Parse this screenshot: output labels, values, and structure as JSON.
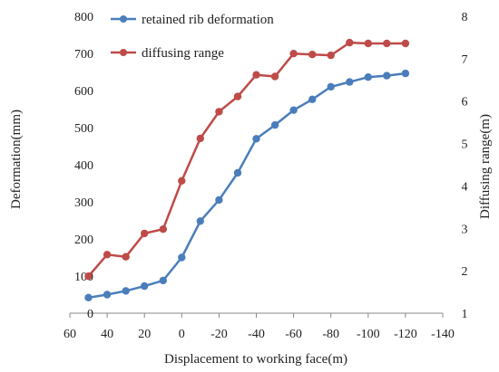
{
  "chart_data": {
    "type": "line",
    "xlabel": "Displacement to working face(m)",
    "ylabel_left": "Deformation(mm)",
    "ylabel_right": "Diffusing range(m)",
    "x_tick_labels": [
      "60",
      "40",
      "20",
      "0",
      "-20",
      "-40",
      "-60",
      "-80",
      "-100",
      "-120",
      "-140"
    ],
    "x_ticks": [
      60,
      40,
      20,
      0,
      -20,
      -40,
      -60,
      -80,
      -100,
      -120,
      -140
    ],
    "xlim": [
      60,
      -140
    ],
    "ylim_left": [
      0,
      800
    ],
    "ylim_right": [
      1,
      8
    ],
    "y_left_tick_labels": [
      "0",
      "100",
      "200",
      "300",
      "400",
      "500",
      "600",
      "700",
      "800"
    ],
    "y_left_ticks": [
      0,
      100,
      200,
      300,
      400,
      500,
      600,
      700,
      800
    ],
    "y_right_tick_labels": [
      "1",
      "2",
      "3",
      "4",
      "5",
      "6",
      "7",
      "8"
    ],
    "y_right_ticks": [
      1,
      2,
      3,
      4,
      5,
      6,
      7,
      8
    ],
    "grid": false,
    "legend_position": "top-center",
    "x": [
      50,
      40,
      30,
      20,
      10,
      0,
      -10,
      -20,
      -30,
      -40,
      -50,
      -60,
      -70,
      -80,
      -90,
      -100,
      -110,
      -120
    ],
    "series": [
      {
        "name": "retained rib deformation",
        "axis": "left",
        "color": "#4a7ebb",
        "values": [
          42,
          50,
          60,
          73,
          88,
          150,
          248,
          305,
          378,
          470,
          507,
          547,
          576,
          610,
          623,
          636,
          640,
          646
        ]
      },
      {
        "name": "diffusing range",
        "axis": "right",
        "color": "#be4b48",
        "values": [
          1.87,
          2.38,
          2.33,
          2.88,
          2.98,
          4.12,
          5.12,
          5.75,
          6.11,
          6.62,
          6.58,
          7.12,
          7.1,
          7.08,
          7.38,
          7.36,
          7.36,
          7.36
        ]
      }
    ]
  }
}
